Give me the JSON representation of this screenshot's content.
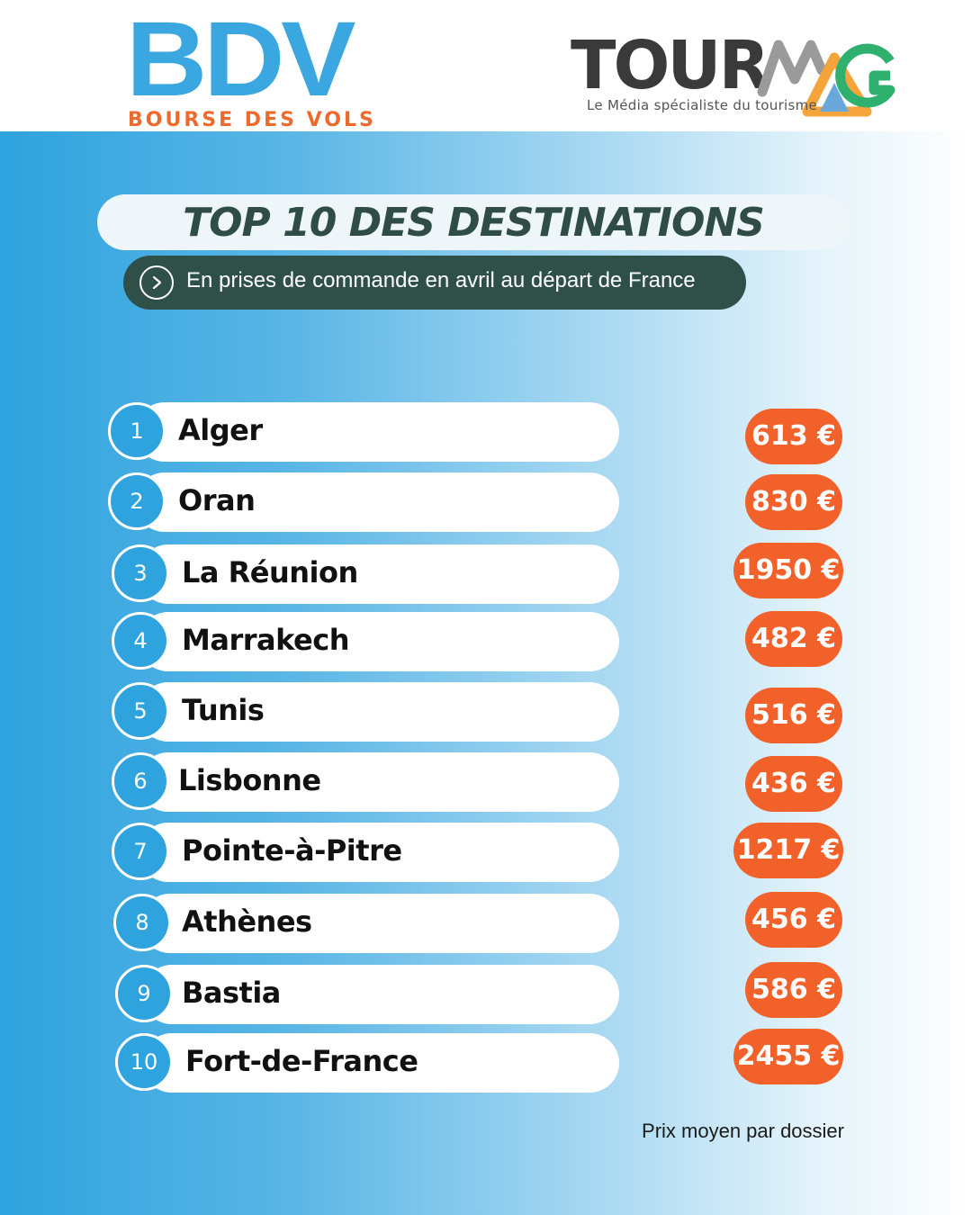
{
  "header": {
    "bdv_logo_text": "BDV",
    "bdv_tagline": "BOURSE DES VOLS",
    "tourmag_logo_text": "TOUR",
    "tourmag_logo_mark": "MAG",
    "tourmag_tagline": "Le Média spécialiste du tourisme",
    "colors": {
      "bdv_blue": "#3aa7e0",
      "bdv_orange": "#ee6a2c"
    }
  },
  "title": "TOP 10 DES DESTINATIONS",
  "subtitle": "En prises de commande en avril au départ de France",
  "subtitle_icon": "chevron-right-circle-icon",
  "rankings": [
    {
      "rank": "1",
      "destination": "Alger",
      "price": "613 €"
    },
    {
      "rank": "2",
      "destination": "Oran",
      "price": "830 €"
    },
    {
      "rank": "3",
      "destination": "La Réunion",
      "price": "1950 €"
    },
    {
      "rank": "4",
      "destination": "Marrakech",
      "price": "482 €"
    },
    {
      "rank": "5",
      "destination": "Tunis",
      "price": "516 €"
    },
    {
      "rank": "6",
      "destination": "Lisbonne",
      "price": "436 €"
    },
    {
      "rank": "7",
      "destination": "Pointe-à-Pitre",
      "price": "1217 €"
    },
    {
      "rank": "8",
      "destination": "Athènes",
      "price": "456 €"
    },
    {
      "rank": "9",
      "destination": "Bastia",
      "price": "586 €"
    },
    {
      "rank": "10",
      "destination": "Fort-de-France",
      "price": "2455 €"
    }
  ],
  "footer_note": "Prix moyen par dossier",
  "colors": {
    "rank_badge": "#2ea3de",
    "price_badge": "#f2612a",
    "title_text": "#2f4d46",
    "subtitle_bg": "#2f5049"
  }
}
